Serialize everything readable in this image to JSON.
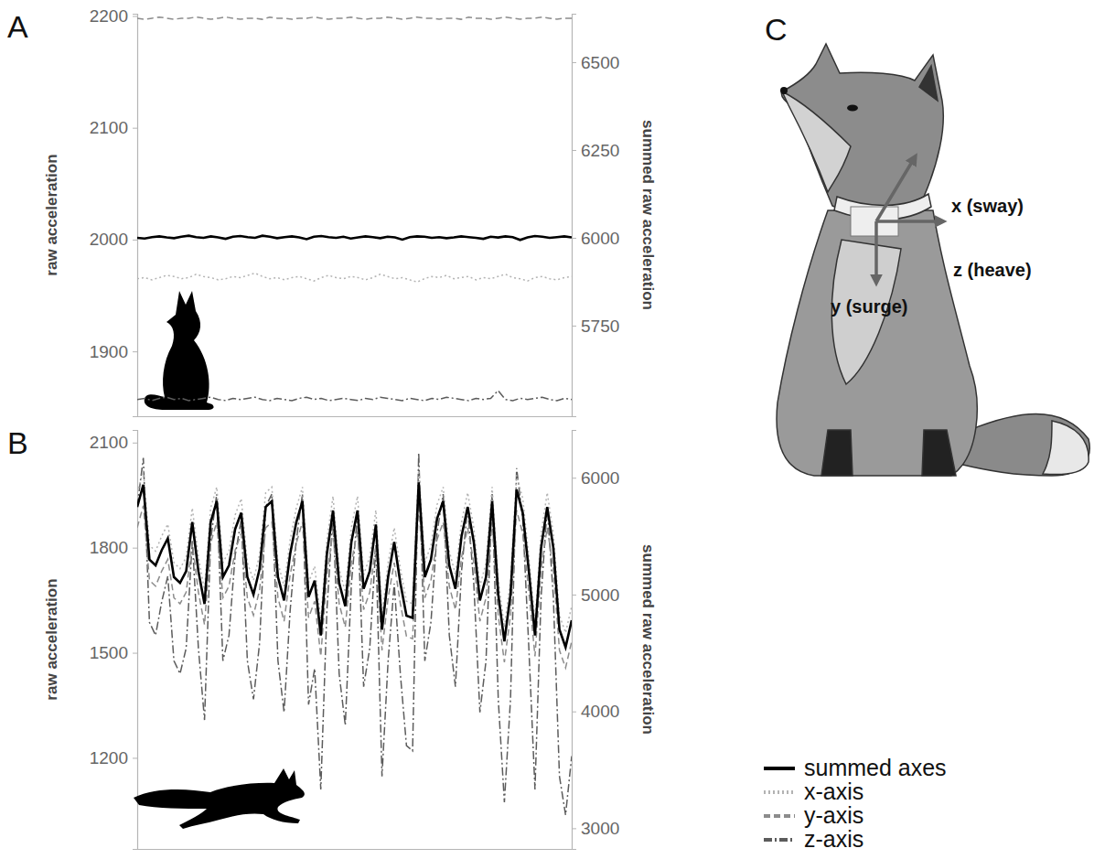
{
  "chart_data": [
    {
      "type": "line",
      "panel_label": "A",
      "y_label": "raw acceleration",
      "y2_label": "summed raw acceleration",
      "x": [
        0,
        1,
        2,
        3,
        4,
        5,
        6,
        7,
        8,
        9,
        10,
        11,
        12,
        13,
        14,
        15,
        16,
        17,
        18,
        19,
        20,
        21,
        22,
        23,
        24,
        25,
        26,
        27,
        28,
        29,
        30,
        31,
        32,
        33,
        34,
        35,
        36,
        37,
        38,
        39,
        40,
        41,
        42,
        43,
        44,
        45,
        46,
        47,
        48,
        49,
        50,
        51,
        52,
        53,
        54,
        55,
        56,
        57,
        58,
        59
      ],
      "xlim": [
        0,
        59
      ],
      "xticks": [],
      "ylim": [
        1842,
        2202
      ],
      "yticks": [
        1900,
        2000,
        2100,
        2200
      ],
      "y2lim": [
        5492,
        6638
      ],
      "y2ticks": [
        5750,
        6000,
        6250,
        6500
      ],
      "grid": false,
      "tick_labels": "y",
      "series": [
        {
          "color": "#000000",
          "line_style": "solid",
          "axis": "y2",
          "values": [
            6000,
            5998,
            6002,
            6004,
            6001,
            5999,
            6003,
            6006,
            6002,
            6000,
            6004,
            6001,
            5997,
            6003,
            6005,
            6002,
            6000,
            6006,
            6003,
            5999,
            6002,
            6004,
            6001,
            5996,
            6003,
            6005,
            6002,
            6000,
            6003,
            5998,
            6001,
            6004,
            6002,
            5999,
            6003,
            6001,
            5995,
            6002,
            6004,
            6003,
            6000,
            6002,
            5999,
            6001,
            6004,
            6002,
            6000,
            5997,
            6003,
            6001,
            6004,
            6002,
            5994,
            6001,
            6005,
            6003,
            6000,
            6002,
            6004,
            6001
          ]
        },
        {
          "color": "#b3b3b3",
          "line_style": "dotted",
          "values": [
            1965,
            1966,
            1964,
            1966,
            1968,
            1967,
            1965,
            1966,
            1969,
            1967,
            1966,
            1964,
            1965,
            1967,
            1966,
            1968,
            1970,
            1967,
            1965,
            1966,
            1964,
            1966,
            1967,
            1965,
            1963,
            1966,
            1968,
            1966,
            1965,
            1967,
            1966,
            1964,
            1966,
            1969,
            1967,
            1965,
            1966,
            1964,
            1962,
            1965,
            1967,
            1966,
            1968,
            1965,
            1966,
            1967,
            1964,
            1966,
            1965,
            1967,
            1969,
            1966,
            1965,
            1963,
            1966,
            1967,
            1965,
            1964,
            1966,
            1967
          ]
        },
        {
          "color": "#8c8c8c",
          "line_style": "dashed",
          "values": [
            2198,
            2197,
            2198,
            2199,
            2198,
            2197,
            2198,
            2198,
            2199,
            2198,
            2197,
            2198,
            2199,
            2198,
            2197,
            2198,
            2198,
            2197,
            2199,
            2198,
            2198,
            2197,
            2198,
            2198,
            2199,
            2198,
            2197,
            2198,
            2198,
            2199,
            2198,
            2197,
            2198,
            2198,
            2199,
            2198,
            2197,
            2198,
            2199,
            2198,
            2198,
            2197,
            2198,
            2198,
            2197,
            2199,
            2198,
            2198,
            2197,
            2198,
            2199,
            2198,
            2197,
            2198,
            2198,
            2199,
            2198,
            2197,
            2198,
            2198
          ]
        },
        {
          "color": "#5c5c5c",
          "line_style": "dashdot",
          "values": [
            1857,
            1858,
            1856,
            1858,
            1859,
            1857,
            1858,
            1856,
            1857,
            1858,
            1859,
            1857,
            1856,
            1858,
            1857,
            1858,
            1859,
            1857,
            1856,
            1858,
            1857,
            1856,
            1858,
            1859,
            1857,
            1858,
            1856,
            1857,
            1858,
            1857,
            1856,
            1858,
            1857,
            1859,
            1858,
            1857,
            1856,
            1858,
            1857,
            1856,
            1858,
            1857,
            1859,
            1858,
            1857,
            1856,
            1858,
            1857,
            1858,
            1865,
            1857,
            1856,
            1858,
            1857,
            1858,
            1859,
            1857,
            1856,
            1858,
            1857
          ]
        }
      ]
    },
    {
      "type": "line",
      "panel_label": "B",
      "y_label": "raw acceleration",
      "y2_label": "summed raw acceleration",
      "x": [
        0,
        1,
        2,
        3,
        4,
        5,
        6,
        7,
        8,
        9,
        10,
        11,
        12,
        13,
        14,
        15,
        16,
        17,
        18,
        19,
        20,
        21,
        22,
        23,
        24,
        25,
        26,
        27,
        28,
        29,
        30,
        31,
        32,
        33,
        34,
        35,
        36,
        37,
        38,
        39,
        40,
        41,
        42,
        43,
        44,
        45,
        46,
        47,
        48,
        49,
        50,
        51,
        52,
        53,
        54,
        55,
        56,
        57,
        58,
        59,
        60,
        61,
        62,
        63,
        64,
        65,
        66,
        67,
        68,
        69,
        70,
        71
      ],
      "xlim": [
        0,
        71
      ],
      "xticks": [],
      "ylim": [
        940,
        2136
      ],
      "yticks": [
        1200,
        1500,
        1800,
        2100
      ],
      "y2lim": [
        2823,
        6409
      ],
      "y2ticks": [
        3000,
        4000,
        5000,
        6000
      ],
      "grid": false,
      "tick_labels": "y",
      "legend": "right",
      "series": [
        {
          "name": "summed axes",
          "color": "#000000",
          "line_style": "solid",
          "axis": "y2",
          "values": [
            5750,
            5940,
            5300,
            5250,
            5380,
            5480,
            5150,
            5100,
            5200,
            5620,
            5200,
            4920,
            5620,
            5800,
            5150,
            5250,
            5560,
            5700,
            5150,
            5000,
            5220,
            5750,
            5800,
            5150,
            4950,
            5350,
            5620,
            5800,
            4980,
            5120,
            4650,
            5350,
            5720,
            5100,
            4900,
            5450,
            5720,
            5050,
            5200,
            5600,
            4700,
            5150,
            5450,
            5100,
            4820,
            4800,
            5960,
            5150,
            5300,
            5650,
            5800,
            5250,
            5050,
            5500,
            5750,
            5450,
            4950,
            5150,
            5800,
            5000,
            4600,
            5000,
            5900,
            5700,
            5200,
            4650,
            5400,
            5750,
            5400,
            4700,
            4550,
            4780
          ]
        },
        {
          "name": "x-axis",
          "color": "#b3b3b3",
          "line_style": "dotted",
          "values": [
            1957,
            2020,
            1807,
            1790,
            1833,
            1867,
            1757,
            1740,
            1773,
            1913,
            1773,
            1680,
            1913,
            1973,
            1757,
            1790,
            1893,
            1940,
            1757,
            1707,
            1780,
            1957,
            1973,
            1757,
            1690,
            1823,
            1913,
            1973,
            1700,
            1747,
            1590,
            1823,
            1947,
            1740,
            1673,
            1857,
            1947,
            1723,
            1773,
            1907,
            1607,
            1757,
            1857,
            1740,
            1647,
            1640,
            2027,
            1757,
            1807,
            1923,
            1973,
            1790,
            1723,
            1873,
            1957,
            1857,
            1690,
            1757,
            1973,
            1707,
            1573,
            1707,
            2007,
            1940,
            1773,
            1590,
            1840,
            1957,
            1840,
            1607,
            1557,
            1633
          ]
        },
        {
          "name": "y-axis",
          "color": "#8c8c8c",
          "line_style": "dashed",
          "values": [
            1857,
            1920,
            1707,
            1690,
            1733,
            1767,
            1657,
            1640,
            1673,
            1813,
            1673,
            1580,
            1813,
            1873,
            1657,
            1690,
            1793,
            1840,
            1657,
            1607,
            1680,
            1857,
            1873,
            1657,
            1590,
            1723,
            1813,
            1873,
            1600,
            1647,
            1490,
            1723,
            1847,
            1640,
            1573,
            1757,
            1847,
            1623,
            1673,
            1807,
            1507,
            1657,
            1757,
            1640,
            1547,
            1540,
            1927,
            1657,
            1707,
            1823,
            1873,
            1690,
            1623,
            1773,
            1857,
            1757,
            1590,
            1657,
            1873,
            1607,
            1473,
            1607,
            1907,
            1840,
            1673,
            1490,
            1740,
            1857,
            1740,
            1507,
            1457,
            1533
          ]
        },
        {
          "name": "z-axis",
          "color": "#5c5c5c",
          "line_style": "dashdot",
          "values": [
            1917,
            2056,
            1587,
            1550,
            1645,
            1719,
            1477,
            1440,
            1513,
            1821,
            1513,
            1308,
            1821,
            1953,
            1477,
            1550,
            1777,
            1880,
            1477,
            1367,
            1528,
            1917,
            1953,
            1477,
            1330,
            1623,
            1821,
            1953,
            1352,
            1455,
            1110,
            1623,
            1895,
            1440,
            1293,
            1697,
            1895,
            1403,
            1513,
            1807,
            1147,
            1477,
            1697,
            1440,
            1235,
            1220,
            2071,
            1477,
            1587,
            1843,
            1953,
            1550,
            1403,
            1733,
            1917,
            1697,
            1330,
            1477,
            1953,
            1367,
            1073,
            1367,
            2027,
            1880,
            1513,
            1110,
            1660,
            1917,
            1660,
            1147,
            1037,
            1205
          ]
        }
      ]
    }
  ],
  "diagram": {
    "panel_label": "C",
    "axes": [
      "x (sway)",
      "y (surge)",
      "z (heave)"
    ]
  }
}
